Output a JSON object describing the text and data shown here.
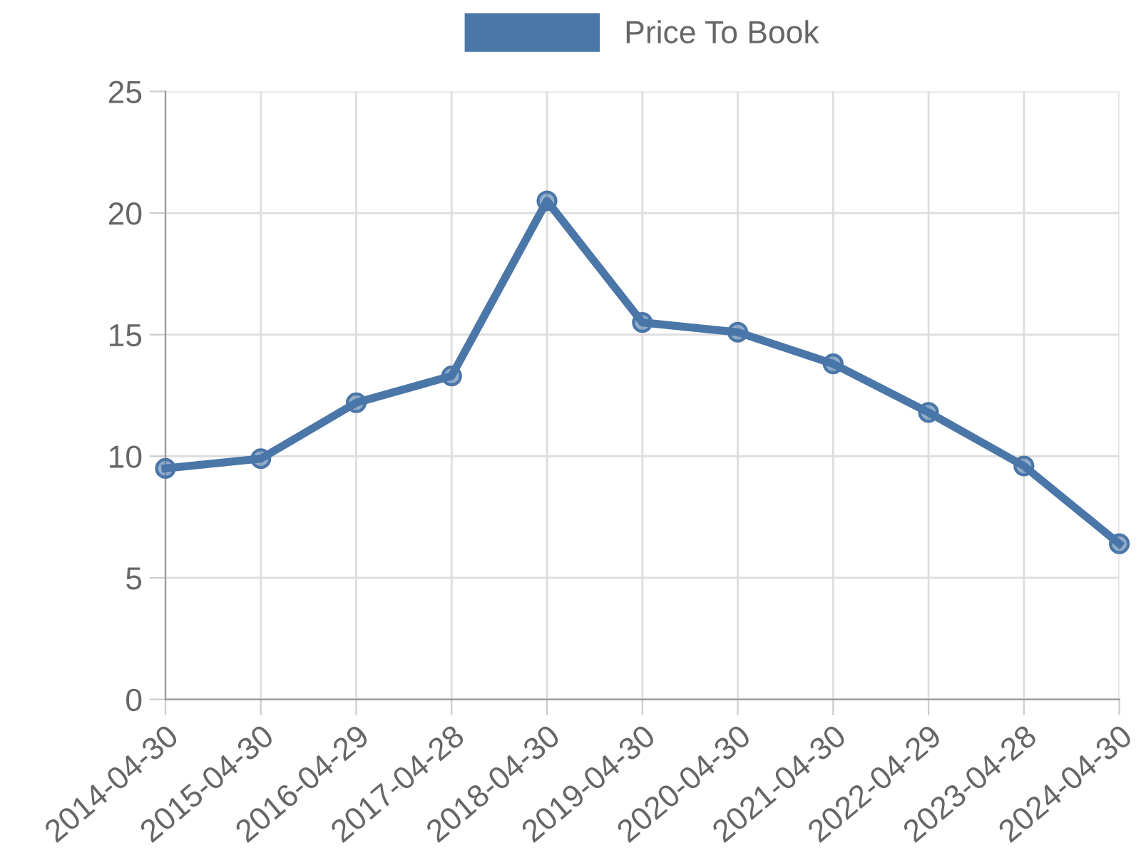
{
  "chart_data": {
    "type": "line",
    "categories": [
      "2014-04-30",
      "2015-04-30",
      "2016-04-29",
      "2017-04-28",
      "2018-04-30",
      "2019-04-30",
      "2020-04-30",
      "2021-04-30",
      "2022-04-29",
      "2023-04-28",
      "2024-04-30"
    ],
    "series": [
      {
        "name": "Price To Book",
        "color": "#4a76a8",
        "values": [
          9.5,
          9.9,
          12.2,
          13.3,
          20.5,
          15.5,
          15.1,
          13.8,
          11.8,
          9.6,
          6.4
        ]
      }
    ],
    "ylim": [
      0,
      25
    ],
    "yticks": [
      0,
      5,
      10,
      15,
      20,
      25
    ],
    "grid": true,
    "legend": "top",
    "marker": "circle",
    "line_style": "solid"
  }
}
